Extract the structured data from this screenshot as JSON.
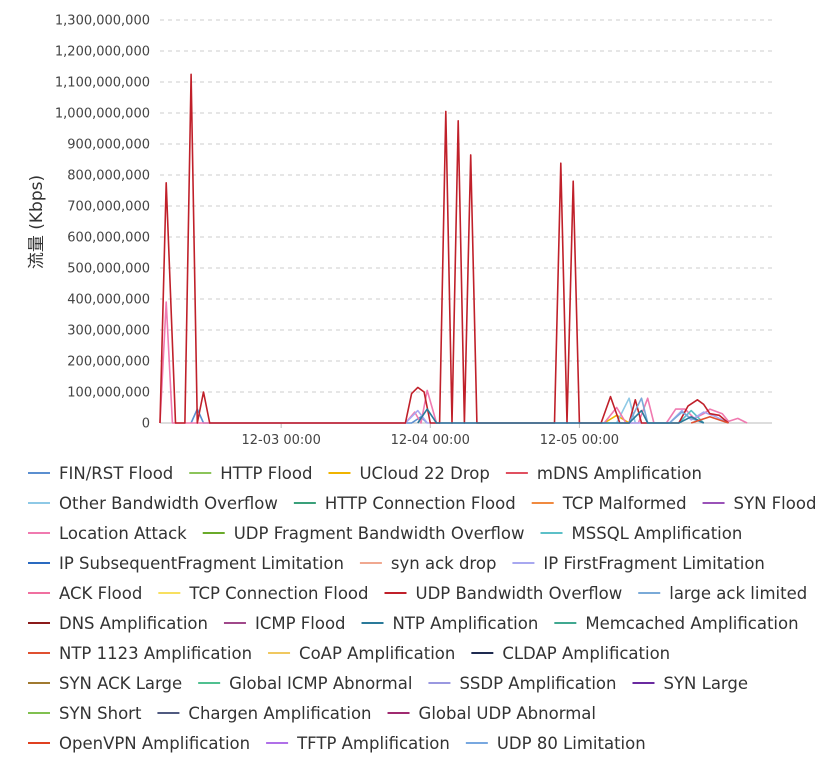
{
  "chart_data": {
    "type": "line",
    "title": "",
    "xlabel": "",
    "ylabel": "流量 (Kbps)",
    "ylim": [
      0,
      1300000000
    ],
    "y_ticks": [
      0,
      100000000,
      200000000,
      300000000,
      400000000,
      500000000,
      600000000,
      700000000,
      800000000,
      900000000,
      1000000000,
      1100000000,
      1200000000,
      1300000000
    ],
    "y_tick_labels": [
      "0",
      "100,000,000",
      "200,000,000",
      "300,000,000",
      "400,000,000",
      "500,000,000",
      "600,000,000",
      "700,000,000",
      "800,000,000",
      "900,000,000",
      "1,000,000,000",
      "1,100,000,000",
      "1,200,000,000",
      "1,300,000,000"
    ],
    "xlim_hours": [
      -19.5,
      79
    ],
    "x_ticks_hours": [
      0,
      24,
      48
    ],
    "x_tick_labels": [
      "12-03 00:00",
      "12-04 00:00",
      "12-05 00:00"
    ],
    "grid": true,
    "legend_position": "bottom",
    "series": [
      {
        "name": "FIN/RST Flood",
        "color": "#5b8fd0",
        "points": [
          [
            -14.5,
            0
          ],
          [
            -13.5,
            45000000
          ],
          [
            -12.5,
            0
          ],
          [
            -9,
            0
          ],
          [
            21,
            0
          ],
          [
            22.5,
            20000000
          ],
          [
            23.5,
            0
          ]
        ]
      },
      {
        "name": "HTTP Flood",
        "color": "#8cc45a",
        "points": []
      },
      {
        "name": "UCloud 22 Drop",
        "color": "#f0b400",
        "points": [
          [
            52,
            0
          ],
          [
            54,
            25000000
          ],
          [
            56,
            0
          ]
        ]
      },
      {
        "name": "mDNS Amplification",
        "color": "#e05060",
        "points": []
      },
      {
        "name": "Other Bandwidth Overflow",
        "color": "#8ec9e6",
        "points": [
          [
            54,
            0
          ],
          [
            56,
            80000000
          ],
          [
            57,
            0
          ]
        ]
      },
      {
        "name": "HTTP Connection Flood",
        "color": "#3aa07a",
        "points": []
      },
      {
        "name": "TCP Malformed",
        "color": "#f08a40",
        "points": []
      },
      {
        "name": "SYN Flood",
        "color": "#9a52b8",
        "points": []
      },
      {
        "name": "Location Attack",
        "color": "#f07ab0",
        "points": [
          [
            -19.5,
            0
          ],
          [
            -18.5,
            390000000
          ],
          [
            -17.5,
            0
          ],
          [
            20,
            0
          ],
          [
            21.5,
            35000000
          ],
          [
            22.5,
            0
          ],
          [
            23.5,
            105000000
          ],
          [
            25,
            0
          ],
          [
            52,
            0
          ],
          [
            54,
            50000000
          ],
          [
            55.5,
            0
          ],
          [
            57.5,
            0
          ],
          [
            59,
            80000000
          ],
          [
            60,
            0
          ],
          [
            62,
            0
          ],
          [
            63.5,
            45000000
          ],
          [
            65,
            45000000
          ],
          [
            66.5,
            15000000
          ],
          [
            68,
            30000000
          ],
          [
            69,
            45000000
          ],
          [
            71,
            30000000
          ],
          [
            72,
            5000000
          ],
          [
            73.5,
            15000000
          ],
          [
            75,
            0
          ]
        ]
      },
      {
        "name": "UDP Fragment Bandwidth Overflow",
        "color": "#6aaa2a",
        "points": []
      },
      {
        "name": "MSSQL Amplification",
        "color": "#5cc0c8",
        "points": [
          [
            64,
            0
          ],
          [
            66,
            40000000
          ],
          [
            68,
            0
          ]
        ]
      },
      {
        "name": "IP SubsequentFragment Limitation",
        "color": "#2a6ac0",
        "points": []
      },
      {
        "name": "syn ack drop",
        "color": "#f0a890",
        "points": []
      },
      {
        "name": "IP FirstFragment Limitation",
        "color": "#a8a8f0",
        "points": [
          [
            20,
            0
          ],
          [
            22,
            40000000
          ],
          [
            23.5,
            0
          ],
          [
            62.5,
            0
          ],
          [
            64.5,
            40000000
          ],
          [
            66,
            10000000
          ],
          [
            68,
            35000000
          ],
          [
            70,
            20000000
          ],
          [
            72,
            0
          ]
        ]
      },
      {
        "name": "ACK Flood",
        "color": "#f070a0",
        "points": []
      },
      {
        "name": "TCP Connection Flood",
        "color": "#f8e060",
        "points": []
      },
      {
        "name": "UDP Bandwidth Overflow",
        "color": "#c0202a",
        "points": [
          [
            -19.5,
            0
          ],
          [
            -18.5,
            775000000
          ],
          [
            -17,
            0
          ],
          [
            -15.5,
            0
          ],
          [
            -14.5,
            1125000000
          ],
          [
            -13.5,
            0
          ],
          [
            -12.5,
            100000000
          ],
          [
            -11.5,
            0
          ],
          [
            20,
            0
          ],
          [
            21,
            95000000
          ],
          [
            22,
            115000000
          ],
          [
            23,
            100000000
          ],
          [
            24,
            0
          ],
          [
            25.5,
            0
          ],
          [
            26.5,
            1005000000
          ],
          [
            27.5,
            0
          ],
          [
            28.5,
            975000000
          ],
          [
            29.5,
            0
          ],
          [
            30.5,
            865000000
          ],
          [
            31.5,
            0
          ],
          [
            44,
            0
          ],
          [
            45,
            838000000
          ],
          [
            46,
            0
          ],
          [
            47,
            780000000
          ],
          [
            48,
            0
          ],
          [
            51.5,
            0
          ],
          [
            53,
            85000000
          ],
          [
            54.5,
            0
          ],
          [
            56,
            0
          ],
          [
            57,
            75000000
          ],
          [
            58,
            0
          ],
          [
            64,
            0
          ],
          [
            65.5,
            55000000
          ],
          [
            67,
            75000000
          ],
          [
            68,
            60000000
          ],
          [
            69,
            30000000
          ],
          [
            70.5,
            25000000
          ],
          [
            72,
            0
          ]
        ]
      },
      {
        "name": "large ack limited",
        "color": "#7aaad8",
        "points": [
          [
            56,
            0
          ],
          [
            58,
            80000000
          ],
          [
            59,
            0
          ],
          [
            62.5,
            0
          ],
          [
            64.5,
            35000000
          ],
          [
            66,
            15000000
          ],
          [
            68,
            0
          ]
        ]
      },
      {
        "name": "DNS Amplification",
        "color": "#8b1a1a",
        "points": []
      },
      {
        "name": "ICMP Flood",
        "color": "#a0488a",
        "points": []
      },
      {
        "name": "NTP Amplification",
        "color": "#2a7a9a",
        "points": [
          [
            22,
            0
          ],
          [
            23.5,
            45000000
          ],
          [
            25,
            0
          ],
          [
            56,
            0
          ],
          [
            58,
            40000000
          ],
          [
            59,
            0
          ],
          [
            64,
            0
          ],
          [
            66,
            20000000
          ],
          [
            68,
            0
          ]
        ]
      },
      {
        "name": "Memcached Amplification",
        "color": "#40a890",
        "points": []
      },
      {
        "name": "NTP 1123 Amplification",
        "color": "#e05030",
        "points": [
          [
            66,
            0
          ],
          [
            69,
            20000000
          ],
          [
            72,
            0
          ]
        ]
      },
      {
        "name": "CoAP Amplification",
        "color": "#f0c860",
        "points": []
      },
      {
        "name": "CLDAP Amplification",
        "color": "#1e2a50",
        "points": []
      },
      {
        "name": "SYN ACK Large",
        "color": "#a07a30",
        "points": []
      },
      {
        "name": "Global ICMP Abnormal",
        "color": "#50c090",
        "points": []
      },
      {
        "name": "SSDP Amplification",
        "color": "#9a98e0",
        "points": []
      },
      {
        "name": "SYN Large",
        "color": "#6a2aa0",
        "points": []
      },
      {
        "name": "SYN Short",
        "color": "#80c050",
        "points": []
      },
      {
        "name": "Chargen Amplification",
        "color": "#505a80",
        "points": []
      },
      {
        "name": "Global UDP Abnormal",
        "color": "#a02a70",
        "points": []
      },
      {
        "name": "OpenVPN Amplification",
        "color": "#e04020",
        "points": []
      },
      {
        "name": "TFTP Amplification",
        "color": "#b070e8",
        "points": []
      },
      {
        "name": "UDP 80 Limitation",
        "color": "#78a8e0",
        "points": []
      }
    ],
    "legend_rows": [
      [
        "FIN/RST Flood",
        "HTTP Flood",
        "UCloud 22 Drop",
        "mDNS Amplification"
      ],
      [
        "Other Bandwidth Overflow",
        "HTTP Connection Flood",
        "TCP Malformed",
        "SYN Flood"
      ],
      [
        "Location Attack",
        "UDP Fragment Bandwidth Overflow",
        "MSSQL Amplification"
      ],
      [
        "IP SubsequentFragment Limitation",
        "syn ack drop",
        "IP FirstFragment Limitation"
      ],
      [
        "ACK Flood",
        "TCP Connection Flood",
        "UDP Bandwidth Overflow",
        "large ack limited"
      ],
      [
        "DNS Amplification",
        "ICMP Flood",
        "NTP Amplification",
        "Memcached Amplification"
      ],
      [
        "NTP 1123 Amplification",
        "CoAP Amplification",
        "CLDAP Amplification"
      ],
      [
        "SYN ACK Large",
        "Global ICMP Abnormal",
        "SSDP Amplification",
        "SYN Large"
      ],
      [
        "SYN Short",
        "Chargen Amplification",
        "Global UDP Abnormal"
      ],
      [
        "OpenVPN Amplification",
        "TFTP Amplification",
        "UDP 80 Limitation"
      ]
    ]
  }
}
